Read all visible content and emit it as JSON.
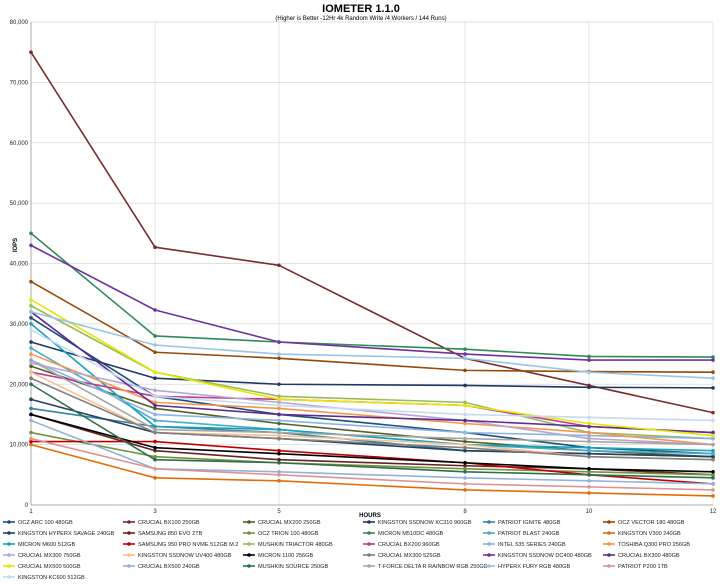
{
  "chart_data": {
    "type": "line",
    "title": "IOMETER 1.1.0",
    "subtitle": "(Higher is Better -12Hr 4k Random Write /4 Workers / 144 Runs)",
    "xlabel": "HOURS",
    "ylabel": "IOPS",
    "x": [
      1,
      3,
      5,
      8,
      10,
      12
    ],
    "xticks": [
      "1",
      "3",
      "5",
      "8",
      "10",
      "12"
    ],
    "ylim": [
      0,
      80000
    ],
    "yticks": [
      "0",
      "10,000",
      "20,000",
      "30,000",
      "40,000",
      "50,000",
      "60,000",
      "70,000",
      "80,000"
    ],
    "grid": true,
    "legend_position": "bottom",
    "series": [
      {
        "name": "OCZ ARC 100 480GB",
        "color": "#1f4e79",
        "values": [
          31000,
          18000,
          15000,
          12000,
          9500,
          8500
        ]
      },
      {
        "name": "CRUCIAL BX100 250GB",
        "color": "#7b2c2c",
        "values": [
          75000,
          42700,
          39700,
          24300,
          19800,
          15300
        ]
      },
      {
        "name": "CRUCIAL MX200 250GB",
        "color": "#4f6228",
        "values": [
          23000,
          16000,
          13500,
          10500,
          9000,
          8000
        ]
      },
      {
        "name": "KINGSTON SSDNOW KC310 960GB",
        "color": "#1f3864",
        "values": [
          27000,
          21000,
          20000,
          19800,
          19500,
          19400
        ]
      },
      {
        "name": "PATRIOT IGNITE 480GB",
        "color": "#31859c",
        "values": [
          16000,
          13000,
          12000,
          9000,
          8500,
          8000
        ]
      },
      {
        "name": "OCZ VECTOR 180 480GB",
        "color": "#984807",
        "values": [
          37000,
          25300,
          24300,
          22300,
          22100,
          22000
        ]
      },
      {
        "name": "KINGSTON HYPERX SAVAGE 240GB",
        "color": "#243f60",
        "values": [
          17500,
          12000,
          11000,
          9000,
          8500,
          8000
        ]
      },
      {
        "name": "SAMSUNG 850 EVO 2TB",
        "color": "#632423",
        "values": [
          15000,
          9000,
          7500,
          6500,
          6000,
          5000
        ]
      },
      {
        "name": "OCZ TRION 100 480GB",
        "color": "#76923c",
        "values": [
          12000,
          8000,
          7000,
          6000,
          5500,
          5000
        ]
      },
      {
        "name": "MICRON M510DC 480GB",
        "color": "#2e8b57",
        "values": [
          45000,
          28000,
          27000,
          25800,
          24600,
          24500
        ]
      },
      {
        "name": "PATRIOT BLAST 240GB",
        "color": "#4bacc6",
        "values": [
          26000,
          14000,
          12500,
          10000,
          9000,
          8500
        ]
      },
      {
        "name": "KINGSTON V300 240GB",
        "color": "#e36c09",
        "values": [
          10000,
          4500,
          4000,
          2500,
          2000,
          1500
        ]
      },
      {
        "name": "MICRON M600 512GB",
        "color": "#17a2b8",
        "values": [
          30000,
          13000,
          12500,
          10000,
          9500,
          9000
        ]
      },
      {
        "name": "SAMSUNG 950 PRO NVME 512GB M.2",
        "color": "#c00000",
        "values": [
          10500,
          10500,
          9000,
          7000,
          5000,
          3500
        ]
      },
      {
        "name": "MUSHKIN TRIACTOR 480GB",
        "color": "#9bbb59",
        "values": [
          33000,
          22000,
          18000,
          17000,
          12000,
          11000
        ]
      },
      {
        "name": "CRUCIAL BX200 960GB",
        "color": "#c0398f",
        "values": [
          22000,
          18000,
          17500,
          16500,
          13000,
          12000
        ]
      },
      {
        "name": "INTEL 535 SERIES 240GB",
        "color": "#8db3e2",
        "values": [
          24000,
          15000,
          14000,
          12000,
          11500,
          11000
        ]
      },
      {
        "name": "TOSHIBA Q300 PRO 256GB",
        "color": "#f79646",
        "values": [
          25000,
          17000,
          16000,
          13500,
          12000,
          10000
        ]
      },
      {
        "name": "CRUCIAL MX300 750GB",
        "color": "#b7a6d5",
        "values": [
          23500,
          19000,
          17000,
          14000,
          11000,
          10000
        ]
      },
      {
        "name": "KINGSTON SSDNOW UV400 480GB",
        "color": "#fabf8f",
        "values": [
          22000,
          12000,
          11500,
          10000,
          8000,
          7500
        ]
      },
      {
        "name": "MICRON 1100 256GB",
        "color": "#000000",
        "values": [
          15000,
          9500,
          8500,
          7000,
          6000,
          5500
        ]
      },
      {
        "name": "CRUCIAL MX300 525GB",
        "color": "#808080",
        "values": [
          21000,
          12000,
          11000,
          9500,
          8000,
          7500
        ]
      },
      {
        "name": "KINGSTON SSDNOW DC400 480GB",
        "color": "#7030a0",
        "values": [
          43000,
          32300,
          27000,
          25000,
          24000,
          24000
        ]
      },
      {
        "name": "CRUCIAL BX300 480GB",
        "color": "#5b2c91",
        "values": [
          32000,
          16500,
          15000,
          14000,
          13000,
          12000
        ]
      },
      {
        "name": "CRUCIAL MX500 500GB",
        "color": "#e6e600",
        "values": [
          34000,
          22000,
          17500,
          16500,
          13500,
          11500
        ]
      },
      {
        "name": "CRUCIAL BX500 240GB",
        "color": "#95b3d7",
        "values": [
          14000,
          6000,
          5500,
          4500,
          4000,
          3500
        ]
      },
      {
        "name": "MUSHKIN SOURCE 250GB",
        "color": "#2f6f4f",
        "values": [
          20000,
          7500,
          7000,
          5500,
          5000,
          4500
        ]
      },
      {
        "name": "T-FORCE DELTA R RAINBOW RGB 250GB",
        "color": "#a5a5a5",
        "values": [
          24000,
          12500,
          12000,
          11000,
          10500,
          10000
        ]
      },
      {
        "name": "HYPERX FURY RGB 480GB",
        "color": "#9dc3e6",
        "values": [
          32000,
          26500,
          25000,
          24300,
          22000,
          21000
        ]
      },
      {
        "name": "PATRIOT P200 1TB",
        "color": "#d99594",
        "values": [
          11000,
          6000,
          5000,
          3500,
          3000,
          2500
        ]
      },
      {
        "name": "KINGSTON KC600 512GB",
        "color": "#c5d9f1",
        "values": [
          29000,
          18000,
          16500,
          15000,
          14500,
          14000
        ]
      }
    ]
  }
}
